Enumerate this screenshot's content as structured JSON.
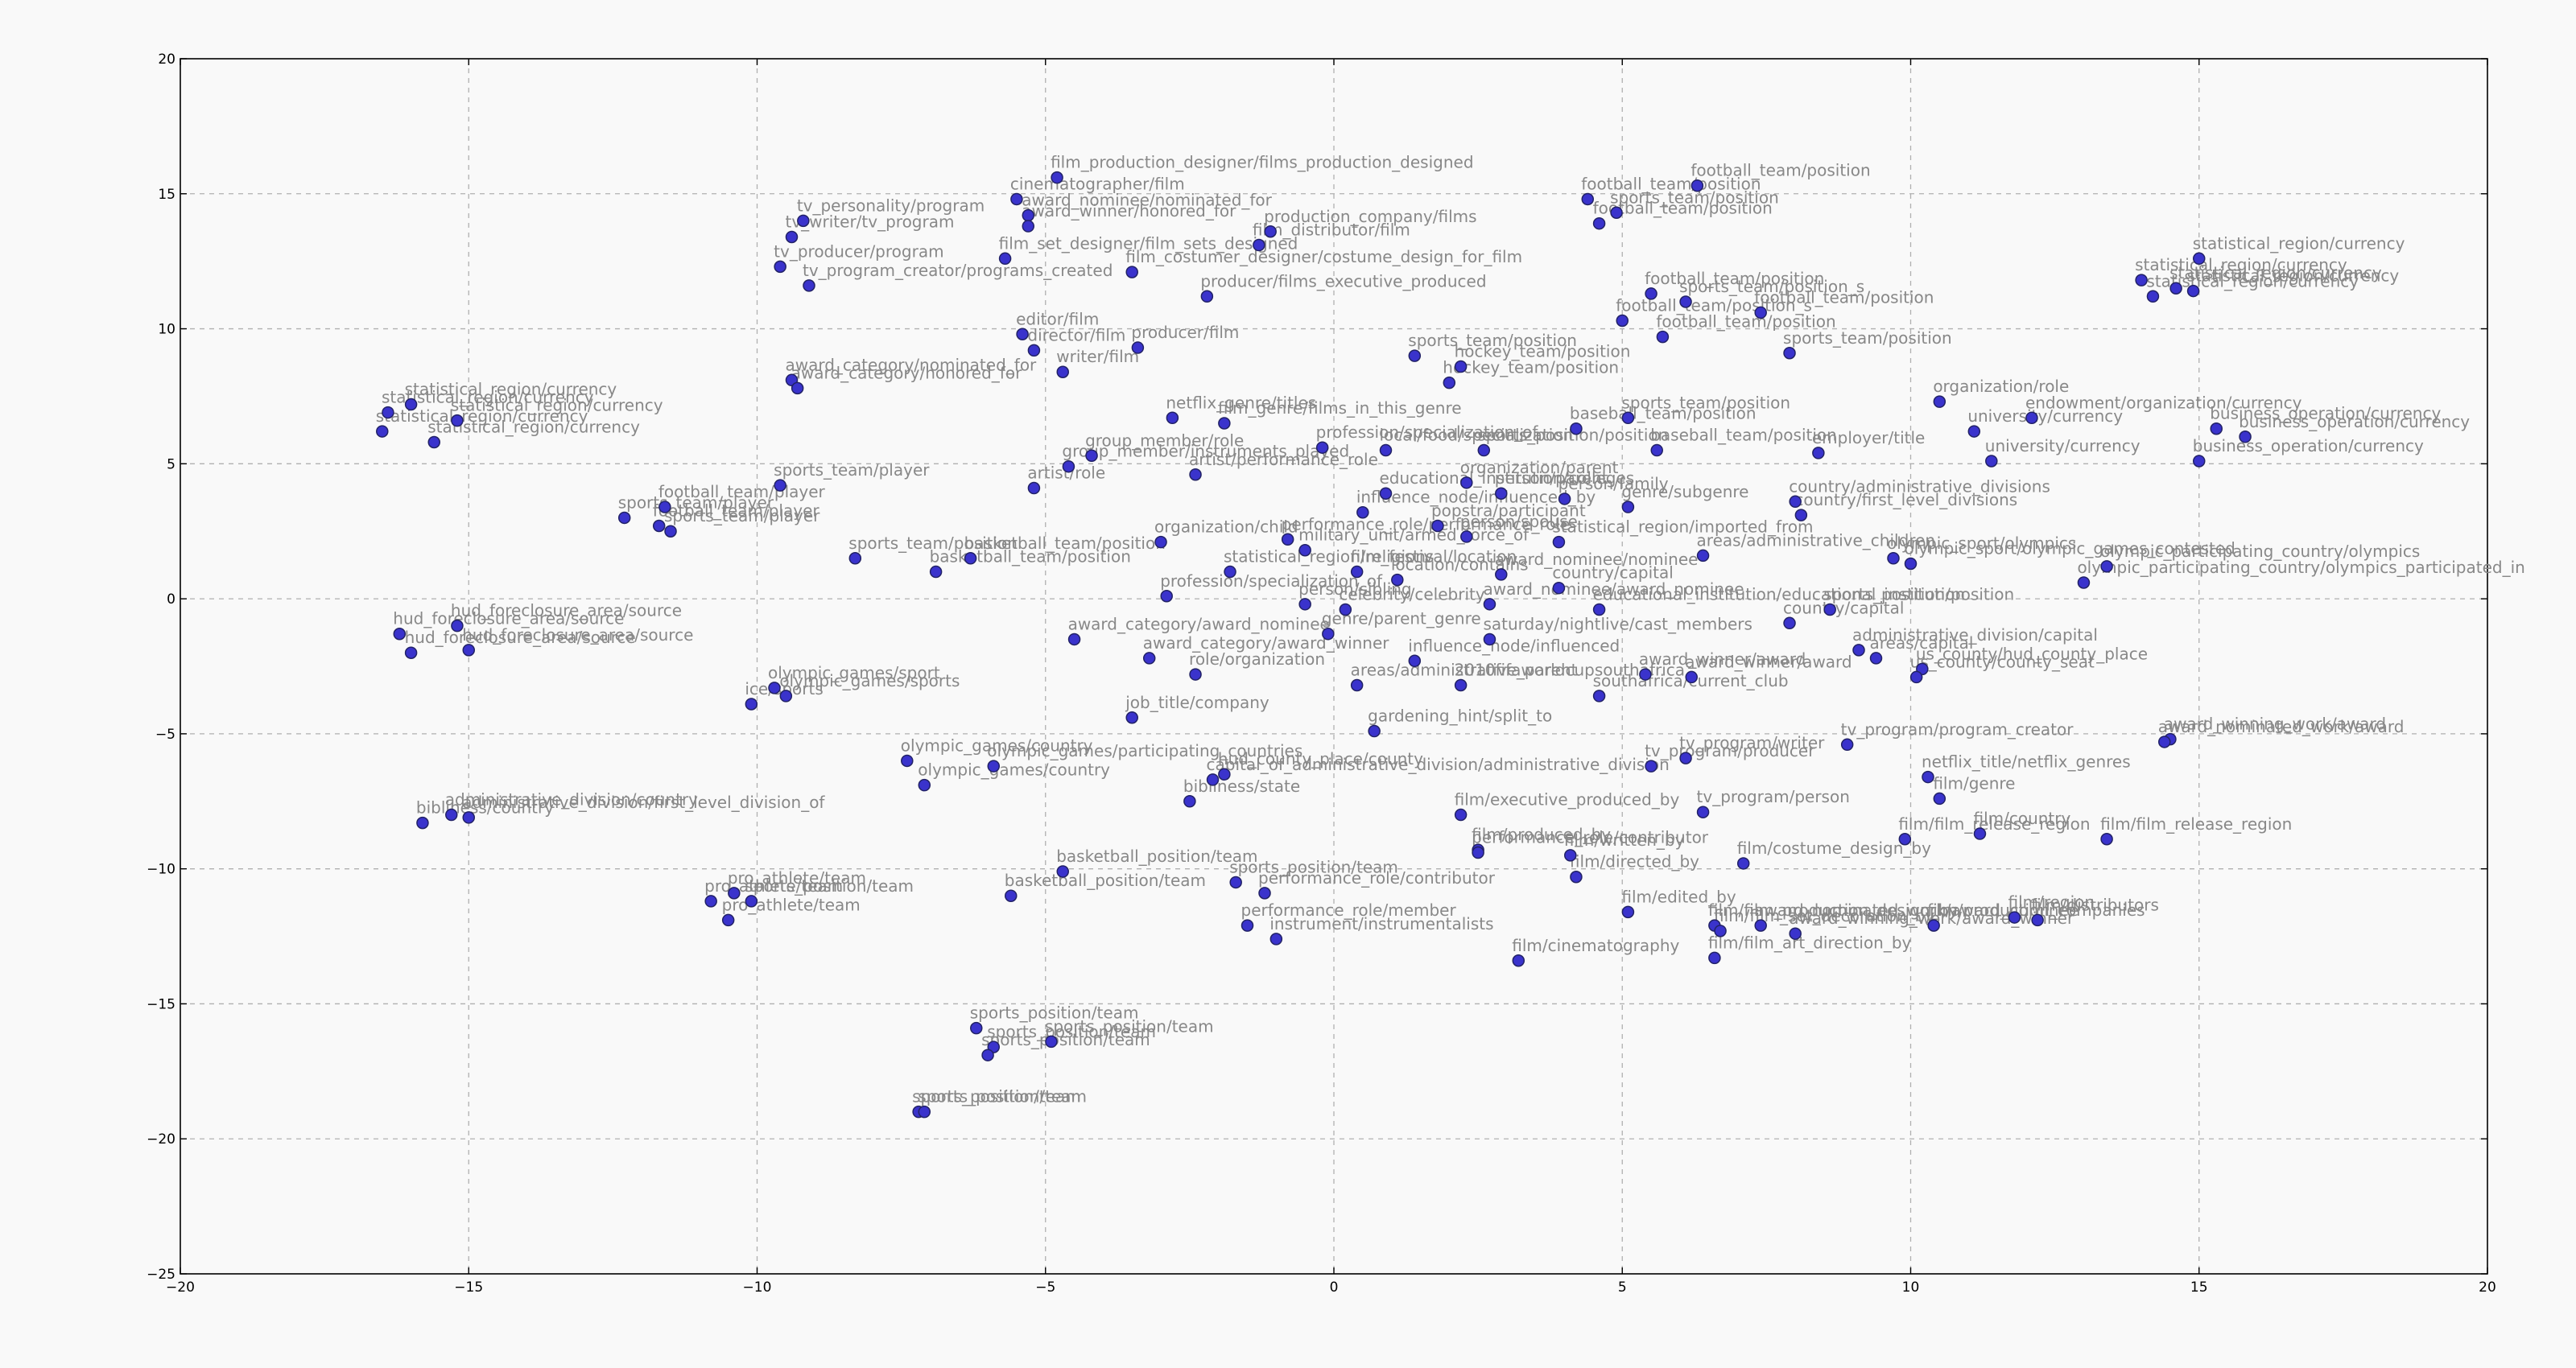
{
  "chart_data": {
    "type": "scatter",
    "title": "",
    "xlabel": "",
    "ylabel": "",
    "xlim": [
      -20,
      20
    ],
    "ylim": [
      -25,
      20
    ],
    "grid": true,
    "xticks": [
      -20,
      -15,
      -10,
      -5,
      0,
      5,
      10,
      15,
      20
    ],
    "yticks": [
      -25,
      -20,
      -15,
      -10,
      -5,
      0,
      5,
      10,
      15,
      20
    ],
    "tick_labels_x": [
      "−20",
      "−15",
      "−10",
      "−5",
      "0",
      "5",
      "10",
      "15",
      "20"
    ],
    "tick_labels_y": [
      "−25",
      "−20",
      "−15",
      "−10",
      "−5",
      "0",
      "5",
      "10",
      "15",
      "20"
    ],
    "marker_color": "#3a33cc",
    "label_color": "#888888",
    "background_color": "#f9f9f9",
    "points": [
      {
        "label": "film_production_designer/films_production_designed",
        "x": -4.8,
        "y": 15.6
      },
      {
        "label": "cinematographer/film",
        "x": -5.5,
        "y": 14.8
      },
      {
        "label": "award_nominee/nominated_for",
        "x": -5.3,
        "y": 14.2
      },
      {
        "label": "award_winner/honored_for",
        "x": -5.3,
        "y": 13.8
      },
      {
        "label": "tv_personality/program",
        "x": -9.2,
        "y": 14.0
      },
      {
        "label": "tv_writer/tv_program",
        "x": -9.4,
        "y": 13.4
      },
      {
        "label": "tv_producer/program",
        "x": -9.6,
        "y": 12.3
      },
      {
        "label": "tv_program_creator/programs_created",
        "x": -9.1,
        "y": 11.6
      },
      {
        "label": "film_set_designer/film_sets_designed",
        "x": -5.7,
        "y": 12.6
      },
      {
        "label": "production_company/films",
        "x": -1.1,
        "y": 13.6
      },
      {
        "label": "film_distributor/film",
        "x": -1.3,
        "y": 13.1
      },
      {
        "label": "film_costumer_designer/costume_design_for_film",
        "x": -3.5,
        "y": 12.1
      },
      {
        "label": "producer/films_executive_produced",
        "x": -2.2,
        "y": 11.2
      },
      {
        "label": "editor/film",
        "x": -5.4,
        "y": 9.8
      },
      {
        "label": "director/film",
        "x": -5.2,
        "y": 9.2
      },
      {
        "label": "producer/film",
        "x": -3.4,
        "y": 9.3
      },
      {
        "label": "writer/film",
        "x": -4.7,
        "y": 8.4
      },
      {
        "label": "award_category/nominated_for",
        "x": -9.4,
        "y": 8.1
      },
      {
        "label": "award_category/honored_for",
        "x": -9.3,
        "y": 7.8
      },
      {
        "label": "netflix_genre/titles",
        "x": -2.8,
        "y": 6.7
      },
      {
        "label": "film_genre/films_in_this_genre",
        "x": -1.9,
        "y": 6.5
      },
      {
        "label": "statistical_region/currency",
        "x": -16.0,
        "y": 7.2
      },
      {
        "label": "statistical_region/currency",
        "x": -16.4,
        "y": 6.9
      },
      {
        "label": "statistical_region/currency",
        "x": -15.2,
        "y": 6.6
      },
      {
        "label": "statistical_region/currency",
        "x": -16.5,
        "y": 6.2
      },
      {
        "label": "statistical_region/currency",
        "x": -15.6,
        "y": 5.8
      },
      {
        "label": "football_team/position",
        "x": 6.3,
        "y": 15.3
      },
      {
        "label": "football_team/position",
        "x": 4.4,
        "y": 14.8
      },
      {
        "label": "sports_team/position",
        "x": 4.9,
        "y": 14.3
      },
      {
        "label": "football_team/position",
        "x": 4.6,
        "y": 13.9
      },
      {
        "label": "football_team/position",
        "x": 5.5,
        "y": 11.3
      },
      {
        "label": "sports_team/position_s",
        "x": 6.1,
        "y": 11.0
      },
      {
        "label": "football_team/position",
        "x": 7.4,
        "y": 10.6
      },
      {
        "label": "football_team/position_s",
        "x": 5.0,
        "y": 10.3
      },
      {
        "label": "football_team/position",
        "x": 5.7,
        "y": 9.7
      },
      {
        "label": "sports_team/position",
        "x": 7.9,
        "y": 9.1
      },
      {
        "label": "sports_team/position",
        "x": 1.4,
        "y": 9.0
      },
      {
        "label": "hockey_team/position",
        "x": 2.2,
        "y": 8.6
      },
      {
        "label": "hockey_team/position",
        "x": 2.0,
        "y": 8.0
      },
      {
        "label": "baseball_team/position",
        "x": 4.2,
        "y": 6.3
      },
      {
        "label": "sports_team/position",
        "x": 5.1,
        "y": 6.7
      },
      {
        "label": "baseball_team/position",
        "x": 5.6,
        "y": 5.5
      },
      {
        "label": "employer/title",
        "x": 8.4,
        "y": 5.4
      },
      {
        "label": "sports_position/position",
        "x": 2.6,
        "y": 5.5
      },
      {
        "label": "profession/specialization_of",
        "x": -0.2,
        "y": 5.6
      },
      {
        "label": "local/food/specialization",
        "x": 0.9,
        "y": 5.5
      },
      {
        "label": "organization/parent",
        "x": 2.3,
        "y": 4.3
      },
      {
        "label": "educational_institution/colleges",
        "x": 0.9,
        "y": 3.9
      },
      {
        "label": "person/parent",
        "x": 2.9,
        "y": 3.9
      },
      {
        "label": "influence_node/influenced_by",
        "x": 0.5,
        "y": 3.2
      },
      {
        "label": "person/family",
        "x": 4.0,
        "y": 3.7
      },
      {
        "label": "genre/subgenre",
        "x": 5.1,
        "y": 3.4
      },
      {
        "label": "popstra/participant",
        "x": 1.8,
        "y": 2.7
      },
      {
        "label": "person/spouse",
        "x": 2.3,
        "y": 2.3
      },
      {
        "label": "organization/role",
        "x": 10.5,
        "y": 7.3
      },
      {
        "label": "endowment/organization/currency",
        "x": 12.1,
        "y": 6.7
      },
      {
        "label": "university/currency",
        "x": 11.1,
        "y": 6.2
      },
      {
        "label": "university/currency",
        "x": 11.4,
        "y": 5.1
      },
      {
        "label": "statistical_region/currency",
        "x": 15.0,
        "y": 12.6
      },
      {
        "label": "statistical_region/currency",
        "x": 14.0,
        "y": 11.8
      },
      {
        "label": "statistical_region/currency",
        "x": 14.6,
        "y": 11.5
      },
      {
        "label": "statistical_region/currency",
        "x": 14.9,
        "y": 11.4
      },
      {
        "label": "statistical_region/currency",
        "x": 14.2,
        "y": 11.2
      },
      {
        "label": "business_operation/currency",
        "x": 15.3,
        "y": 6.3
      },
      {
        "label": "business_operation/currency",
        "x": 15.8,
        "y": 6.0
      },
      {
        "label": "business_operation/currency",
        "x": 15.0,
        "y": 5.1
      },
      {
        "label": "group_member/role",
        "x": -4.2,
        "y": 5.3
      },
      {
        "label": "group_member/instruments_played",
        "x": -4.6,
        "y": 4.9
      },
      {
        "label": "artist/performance_role",
        "x": -2.4,
        "y": 4.6
      },
      {
        "label": "artist/role",
        "x": -5.2,
        "y": 4.1
      },
      {
        "label": "sports_team/player",
        "x": -9.6,
        "y": 4.2
      },
      {
        "label": "football_team/player",
        "x": -11.6,
        "y": 3.4
      },
      {
        "label": "sports_team/player",
        "x": -12.3,
        "y": 3.0
      },
      {
        "label": "football_team/player",
        "x": -11.7,
        "y": 2.7
      },
      {
        "label": "sports_team/player",
        "x": -11.5,
        "y": 2.5
      },
      {
        "label": "organization/child",
        "x": -3.0,
        "y": 2.1
      },
      {
        "label": "performance_role/performance_role",
        "x": -0.8,
        "y": 2.2
      },
      {
        "label": "military_unit/armed_force_of",
        "x": -0.5,
        "y": 1.8
      },
      {
        "label": "statistical_region/imported_from",
        "x": 3.9,
        "y": 2.1
      },
      {
        "label": "country/first_level_divisions",
        "x": 8.1,
        "y": 3.1
      },
      {
        "label": "country/administrative_divisions",
        "x": 8.0,
        "y": 3.6
      },
      {
        "label": "areas/administrative_children",
        "x": 6.4,
        "y": 1.6
      },
      {
        "label": "sports_team/position",
        "x": -8.3,
        "y": 1.5
      },
      {
        "label": "basketball_team/position",
        "x": -6.3,
        "y": 1.5
      },
      {
        "label": "basketball_team/position",
        "x": -6.9,
        "y": 1.0
      },
      {
        "label": "statistical_region/religions",
        "x": -1.8,
        "y": 1.0
      },
      {
        "label": "film_festival/location",
        "x": 0.4,
        "y": 1.0
      },
      {
        "label": "location/contains",
        "x": 1.1,
        "y": 0.7
      },
      {
        "label": "award_nominee/nominee",
        "x": 2.9,
        "y": 0.9
      },
      {
        "label": "country/capital",
        "x": 3.9,
        "y": 0.4
      },
      {
        "label": "profession/specialization_of",
        "x": -2.9,
        "y": 0.1
      },
      {
        "label": "person/sibling",
        "x": -0.5,
        "y": -0.2
      },
      {
        "label": "celebrity/celebrity",
        "x": 0.2,
        "y": -0.4
      },
      {
        "label": "award_nominee/award_nominee",
        "x": 2.7,
        "y": -0.2
      },
      {
        "label": "educational_institution/educational_institution",
        "x": 4.6,
        "y": -0.4
      },
      {
        "label": "sports_position/position",
        "x": 8.6,
        "y": -0.4
      },
      {
        "label": "country/capital",
        "x": 7.9,
        "y": -0.9
      },
      {
        "label": "olympic_sport/olympics",
        "x": 9.7,
        "y": 1.5
      },
      {
        "label": "olympic_sport/olympic_games_contested",
        "x": 10.0,
        "y": 1.3
      },
      {
        "label": "olympic_participating_country/olympics",
        "x": 13.4,
        "y": 1.2
      },
      {
        "label": "olympic_participating_country/olympics_participated_in",
        "x": 13.0,
        "y": 0.6
      },
      {
        "label": "administrative_division/capital",
        "x": 9.1,
        "y": -1.9
      },
      {
        "label": "areas/capital",
        "x": 9.4,
        "y": -2.2
      },
      {
        "label": "us_county/hud_county_place",
        "x": 10.2,
        "y": -2.6
      },
      {
        "label": "us_county/county_seat",
        "x": 10.1,
        "y": -2.9
      },
      {
        "label": "hud_foreclosure_area/source",
        "x": -16.2,
        "y": -1.3
      },
      {
        "label": "hud_foreclosure_area/source",
        "x": -15.2,
        "y": -1.0
      },
      {
        "label": "hud_foreclosure_area/source",
        "x": -15.0,
        "y": -1.9
      },
      {
        "label": "hud_foreclosure_area/source",
        "x": -16.0,
        "y": -2.0
      },
      {
        "label": "award_category/award_nominee",
        "x": -4.5,
        "y": -1.5
      },
      {
        "label": "award_category/award_winner",
        "x": -3.2,
        "y": -2.2
      },
      {
        "label": "role/organization",
        "x": -2.4,
        "y": -2.8
      },
      {
        "label": "genre/parent_genre",
        "x": -0.1,
        "y": -1.3
      },
      {
        "label": "saturday/nightlive/cast_members",
        "x": 2.7,
        "y": -1.5
      },
      {
        "label": "influence_node/influenced",
        "x": 1.4,
        "y": -2.3
      },
      {
        "label": "award_winner/award",
        "x": 5.4,
        "y": -2.8
      },
      {
        "label": "award_winner/award",
        "x": 6.2,
        "y": -2.9
      },
      {
        "label": "southafrica/current_club",
        "x": 4.6,
        "y": -3.6
      },
      {
        "label": "2010fifaworldcupsouthafrica",
        "x": 2.2,
        "y": -3.2
      },
      {
        "label": "areas/administrative_parent",
        "x": 0.4,
        "y": -3.2
      },
      {
        "label": "job_title/company",
        "x": -3.5,
        "y": -4.4
      },
      {
        "label": "gardening_hint/split_to",
        "x": 0.7,
        "y": -4.9
      },
      {
        "label": "ice/sports",
        "x": -10.1,
        "y": -3.9
      },
      {
        "label": "olympic_games/sports",
        "x": -9.5,
        "y": -3.6
      },
      {
        "label": "olympic_games/sport",
        "x": -9.7,
        "y": -3.3
      },
      {
        "label": "olympic_games/country",
        "x": -7.4,
        "y": -6.0
      },
      {
        "label": "olympic_games/participating_countries",
        "x": -5.9,
        "y": -6.2
      },
      {
        "label": "olympic_games/country",
        "x": -7.1,
        "y": -6.9
      },
      {
        "label": "hud_county_place/county",
        "x": -1.9,
        "y": -6.5
      },
      {
        "label": "capital_of_administrative_division/administrative_division",
        "x": -2.1,
        "y": -6.7
      },
      {
        "label": "bibliness/state",
        "x": -2.5,
        "y": -7.5
      },
      {
        "label": "administrative_division/country",
        "x": -15.3,
        "y": -8.0
      },
      {
        "label": "administrative_division/first_level_division_of",
        "x": -15.0,
        "y": -8.1
      },
      {
        "label": "bibliness/country",
        "x": -15.8,
        "y": -8.3
      },
      {
        "label": "tv_program/program_creator",
        "x": 8.9,
        "y": -5.4
      },
      {
        "label": "tv_program/producer",
        "x": 5.5,
        "y": -6.2
      },
      {
        "label": "tv_program/writer",
        "x": 6.1,
        "y": -5.9
      },
      {
        "label": "netflix_title/netflix_genres",
        "x": 10.3,
        "y": -6.6
      },
      {
        "label": "film/genre",
        "x": 10.5,
        "y": -7.4
      },
      {
        "label": "film/executive_produced_by",
        "x": 2.2,
        "y": -8.0
      },
      {
        "label": "tv_program/person",
        "x": 6.4,
        "y": -7.9
      },
      {
        "label": "award_winning_work/award",
        "x": 14.5,
        "y": -5.2
      },
      {
        "label": "award_nominated_work/award",
        "x": 14.4,
        "y": -5.3
      },
      {
        "label": "film/film_release_region",
        "x": 9.9,
        "y": -8.9
      },
      {
        "label": "film/country",
        "x": 11.2,
        "y": -8.7
      },
      {
        "label": "film/film_release_region",
        "x": 13.4,
        "y": -8.9
      },
      {
        "label": "film/costume_design_by",
        "x": 7.1,
        "y": -9.8
      },
      {
        "label": "film/produced_by",
        "x": 2.5,
        "y": -9.3
      },
      {
        "label": "film/written_by",
        "x": 4.1,
        "y": -9.5
      },
      {
        "label": "film/directed_by",
        "x": 4.2,
        "y": -10.3
      },
      {
        "label": "film/edited_by",
        "x": 5.1,
        "y": -11.6
      },
      {
        "label": "film/film_production_design_by",
        "x": 6.6,
        "y": -12.1
      },
      {
        "label": "award_nominated_work/award_nominee",
        "x": 7.4,
        "y": -12.1
      },
      {
        "label": "award_winning_work/award_winner",
        "x": 8.0,
        "y": -12.4
      },
      {
        "label": "film/production_companies",
        "x": 10.4,
        "y": -12.1
      },
      {
        "label": "film/region",
        "x": 11.8,
        "y": -11.8
      },
      {
        "label": "film/distributors",
        "x": 12.2,
        "y": -11.9
      },
      {
        "label": "film/film_set_decoration_by",
        "x": 6.7,
        "y": -12.3
      },
      {
        "label": "film/film_art_direction_by",
        "x": 6.6,
        "y": -13.3
      },
      {
        "label": "film/cinematography",
        "x": 3.2,
        "y": -13.4
      },
      {
        "label": "basketball_position/team",
        "x": -4.7,
        "y": -10.1
      },
      {
        "label": "basketball_position/team",
        "x": -5.6,
        "y": -11.0
      },
      {
        "label": "sports_position/team",
        "x": -1.7,
        "y": -10.5
      },
      {
        "label": "performance_role/contributor",
        "x": 2.5,
        "y": -9.4
      },
      {
        "label": "performance_role/contributor",
        "x": -1.2,
        "y": -10.9
      },
      {
        "label": "performance_role/member",
        "x": -1.5,
        "y": -12.1
      },
      {
        "label": "instrument/instrumentalists",
        "x": -1.0,
        "y": -12.6
      },
      {
        "label": "pro_athlete/team",
        "x": -10.4,
        "y": -10.9
      },
      {
        "label": "sports_position/team",
        "x": -10.1,
        "y": -11.2
      },
      {
        "label": "pro_athlete/team",
        "x": -10.8,
        "y": -11.2
      },
      {
        "label": "pro_athlete/team",
        "x": -10.5,
        "y": -11.9
      },
      {
        "label": "sports_position/team",
        "x": -6.2,
        "y": -15.9
      },
      {
        "label": "sports_position/team",
        "x": -4.9,
        "y": -16.4
      },
      {
        "label": "sports_position/team",
        "x": -5.9,
        "y": -16.6
      },
      {
        "label": "sports_position/team",
        "x": -6.0,
        "y": -16.9
      },
      {
        "label": "sports_position/team",
        "x": -7.2,
        "y": -19.0
      },
      {
        "label": "sports_position/team",
        "x": -7.1,
        "y": -19.0
      }
    ]
  }
}
